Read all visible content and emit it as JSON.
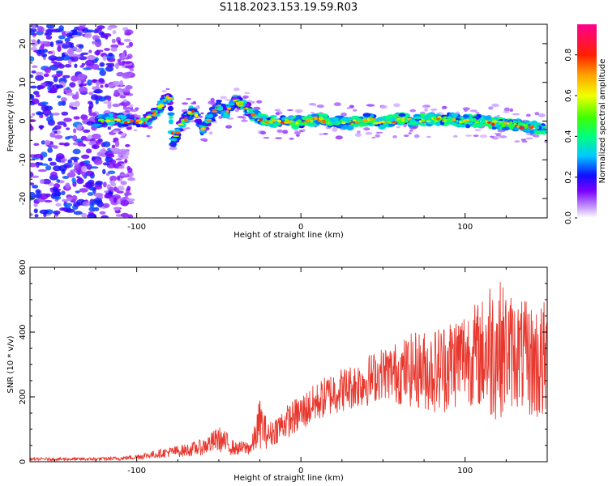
{
  "title": "S118.2023.153.19.59.R03",
  "colors": {
    "snr_line": "#e8382e",
    "axis": "#000000"
  },
  "chart_data": [
    {
      "type": "heatmap",
      "xlabel": "Height of straight line (km)",
      "ylabel": "Frequency (Hz)",
      "xlim": [
        -165,
        150
      ],
      "ylim": [
        -25,
        25
      ],
      "x_ticks": [
        -100,
        0,
        100
      ],
      "y_ticks": [
        -20,
        -10,
        0,
        10,
        20
      ],
      "colormap": "rainbow (white-purple-blue-cyan-green-yellow-red-magenta)",
      "colorbar": {
        "label": "Normalized spectral amplitude",
        "range": [
          0.0,
          0.95
        ],
        "ticks": [
          0.0,
          0.2,
          0.4,
          0.6,
          0.8
        ]
      },
      "ridge": {
        "x": [
          -125,
          -115,
          -105,
          -95,
          -90,
          -85,
          -80,
          -78,
          -76,
          -74,
          -70,
          -65,
          -60,
          -55,
          -50,
          -45,
          -40,
          -35,
          -30,
          -25,
          -20,
          -10,
          0,
          10,
          20,
          30,
          40,
          50,
          60,
          70,
          80,
          90,
          100,
          110,
          120,
          130,
          140,
          148
        ],
        "y": [
          0,
          0.5,
          0,
          0,
          1.5,
          4,
          6.5,
          -6,
          -4,
          -1.5,
          1,
          3,
          -2,
          1,
          4,
          2,
          5.5,
          4,
          2,
          0.5,
          0,
          0,
          -0.5,
          0.5,
          0,
          -0.5,
          0.5,
          -0.5,
          0.5,
          0,
          0.5,
          0.5,
          0,
          0,
          -0.5,
          -1,
          -1.5,
          -2.5
        ]
      },
      "grid": false
    },
    {
      "type": "line",
      "xlabel": "Height of straight line (km)",
      "ylabel": "SNR (10 * v/v)",
      "xlim": [
        -165,
        150
      ],
      "ylim": [
        0,
        600
      ],
      "x_ticks": [
        -100,
        0,
        100
      ],
      "y_ticks": [
        0,
        200,
        400,
        600
      ],
      "envelope": {
        "x": [
          -165,
          -130,
          -110,
          -100,
          -90,
          -80,
          -70,
          -60,
          -50,
          -45,
          -40,
          -30,
          -25,
          -20,
          -10,
          0,
          10,
          20,
          30,
          40,
          50,
          60,
          70,
          80,
          90,
          100,
          110,
          115,
          120,
          130,
          140,
          148
        ],
        "mean": [
          8,
          8,
          10,
          15,
          22,
          30,
          35,
          45,
          70,
          55,
          40,
          45,
          120,
          80,
          120,
          150,
          185,
          215,
          230,
          250,
          275,
          275,
          285,
          280,
          300,
          330,
          330,
          350,
          350,
          340,
          310,
          300
        ],
        "amplitude": [
          4,
          5,
          6,
          8,
          12,
          16,
          20,
          25,
          40,
          35,
          20,
          25,
          80,
          40,
          50,
          60,
          60,
          70,
          70,
          80,
          80,
          100,
          120,
          130,
          150,
          150,
          170,
          230,
          220,
          170,
          180,
          200
        ]
      },
      "grid": false
    }
  ]
}
